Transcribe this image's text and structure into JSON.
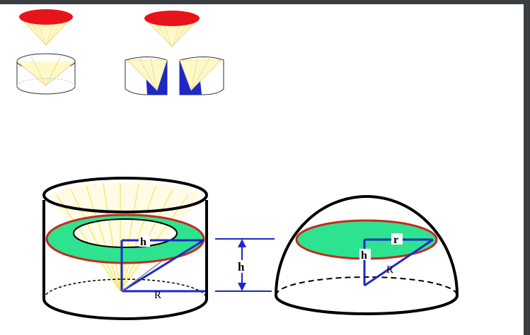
{
  "labels": {
    "cylinder_h": "h",
    "cylinder_R": "R",
    "dimension_h": "h",
    "hemisphere_r": "r",
    "hemisphere_h": "h",
    "hemisphere_R": "R"
  },
  "colors": {
    "cone_top": "#e8141c",
    "cross_section_fill": "#2ee38f",
    "cross_section_outline": "#c8281e",
    "cut_face": "#1e28c8",
    "dimension_lines": "#1e28c8",
    "cone_rays": "#f5e67a",
    "outline": "#000000"
  }
}
